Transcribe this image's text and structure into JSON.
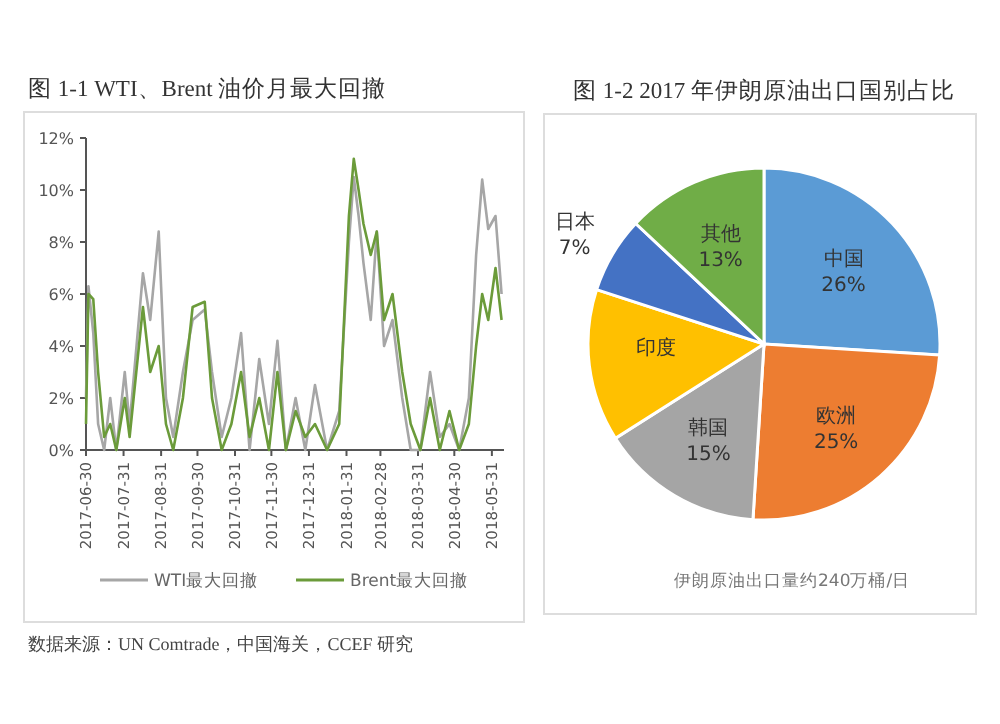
{
  "chart_data": [
    {
      "type": "line",
      "title": "图 1-1 WTI、Brent 油价月最大回撤",
      "x": [
        "2017-06-30",
        "2017-07-02",
        "2017-07-06",
        "2017-07-10",
        "2017-07-15",
        "2017-07-20",
        "2017-07-25",
        "2017-08-01",
        "2017-08-05",
        "2017-08-16",
        "2017-08-22",
        "2017-08-29",
        "2017-09-04",
        "2017-09-10",
        "2017-09-18",
        "2017-09-26",
        "2017-10-06",
        "2017-10-12",
        "2017-10-20",
        "2017-10-28",
        "2017-11-05",
        "2017-11-12",
        "2017-11-20",
        "2017-11-28",
        "2017-12-05",
        "2017-12-12",
        "2017-12-20",
        "2017-12-28",
        "2018-01-05",
        "2018-01-15",
        "2018-01-25",
        "2018-02-02",
        "2018-02-06",
        "2018-02-10",
        "2018-02-14",
        "2018-02-20",
        "2018-02-25",
        "2018-03-03",
        "2018-03-10",
        "2018-03-18",
        "2018-03-25",
        "2018-04-02",
        "2018-04-10",
        "2018-04-18",
        "2018-04-26",
        "2018-05-04",
        "2018-05-12",
        "2018-05-18",
        "2018-05-23",
        "2018-05-28",
        "2018-06-03",
        "2018-06-08"
      ],
      "series": [
        {
          "name": "WTI最大回撤",
          "color": "#a6a6a6",
          "values": [
            2,
            6.3,
            4.5,
            1,
            0,
            2,
            0,
            3,
            1,
            6.8,
            5,
            8.4,
            2,
            0.5,
            3,
            5,
            5.4,
            3,
            0.5,
            2,
            4.5,
            0,
            3.5,
            1,
            4.2,
            0,
            2,
            0,
            2.5,
            0,
            1.5,
            8,
            10.5,
            9,
            7.2,
            5,
            8.4,
            4,
            5,
            2,
            0,
            0,
            3,
            0.5,
            1,
            0,
            2,
            7.5,
            10.4,
            8.5,
            9,
            6
          ]
        },
        {
          "name": "Brent最大回撤",
          "color": "#6b9b3a",
          "values": [
            1,
            6,
            5.8,
            3,
            0.5,
            1,
            0,
            2,
            0.5,
            5.5,
            3,
            4,
            1,
            0,
            2,
            5.5,
            5.7,
            2,
            0,
            1,
            3,
            0.5,
            2,
            0,
            3,
            0,
            1.5,
            0.5,
            1,
            0,
            1,
            9,
            11.2,
            10,
            8.7,
            7.5,
            8.4,
            5,
            6,
            3,
            1,
            0,
            2,
            0,
            1.5,
            0,
            1,
            4,
            6,
            5,
            7,
            5
          ]
        }
      ],
      "xlim": [
        "2017-06-30",
        "2018-06-10"
      ],
      "xticks": [
        "2017-06-30",
        "2017-07-31",
        "2017-08-31",
        "2017-09-30",
        "2017-10-31",
        "2017-11-30",
        "2017-12-31",
        "2018-01-31",
        "2018-02-28",
        "2018-03-31",
        "2018-04-30",
        "2018-05-31"
      ],
      "ylim": [
        0,
        12
      ],
      "yticks": [
        {
          "value": 0,
          "label": "0%"
        },
        {
          "value": 2,
          "label": "2%"
        },
        {
          "value": 4,
          "label": "4%"
        },
        {
          "value": 6,
          "label": "6%"
        },
        {
          "value": 8,
          "label": "8%"
        },
        {
          "value": 10,
          "label": "10%"
        },
        {
          "value": 12,
          "label": "12%"
        }
      ],
      "legend": "bottom",
      "grid": false,
      "annotations": [
        "数据来源：UN Comtrade，中国海关，CCEF 研究"
      ]
    },
    {
      "type": "pie",
      "title": "图 1-2 2017 年伊朗原油出口国别占比",
      "categories": [
        "中国",
        "欧洲",
        "韩国",
        "印度",
        "日本",
        "其他"
      ],
      "values": [
        26,
        25,
        15,
        14,
        7,
        13
      ],
      "value_labels": [
        "26%",
        "25%",
        "15%",
        null,
        "7%",
        "13%"
      ],
      "colors": [
        "#5b9bd5",
        "#ed7d31",
        "#a5a5a5",
        "#ffc000",
        "#4472c4",
        "#70ad47"
      ],
      "annotations": [
        "伊朗原油出口量约240万桶/日"
      ]
    }
  ]
}
